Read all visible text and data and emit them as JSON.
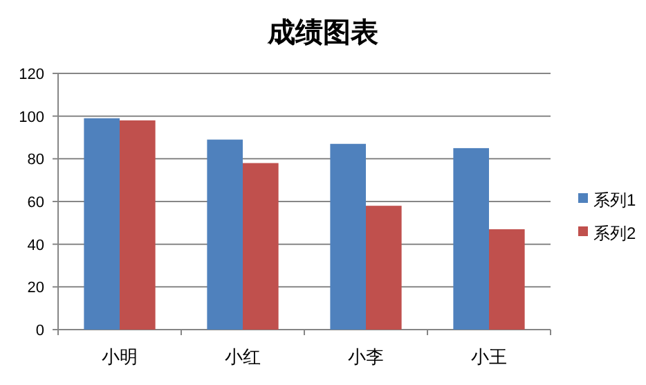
{
  "chart_data": {
    "type": "bar",
    "title": "成绩图表",
    "categories": [
      "小明",
      "小红",
      "小李",
      "小王"
    ],
    "series": [
      {
        "name": "系列1",
        "color": "#4f81bd",
        "values": [
          99,
          89,
          87,
          85
        ]
      },
      {
        "name": "系列2",
        "color": "#c0504d",
        "values": [
          98,
          78,
          58,
          47
        ]
      }
    ],
    "ylim": [
      0,
      120
    ],
    "yticks": [
      0,
      20,
      40,
      60,
      80,
      100,
      120
    ],
    "grid": "y",
    "legend": "right"
  }
}
